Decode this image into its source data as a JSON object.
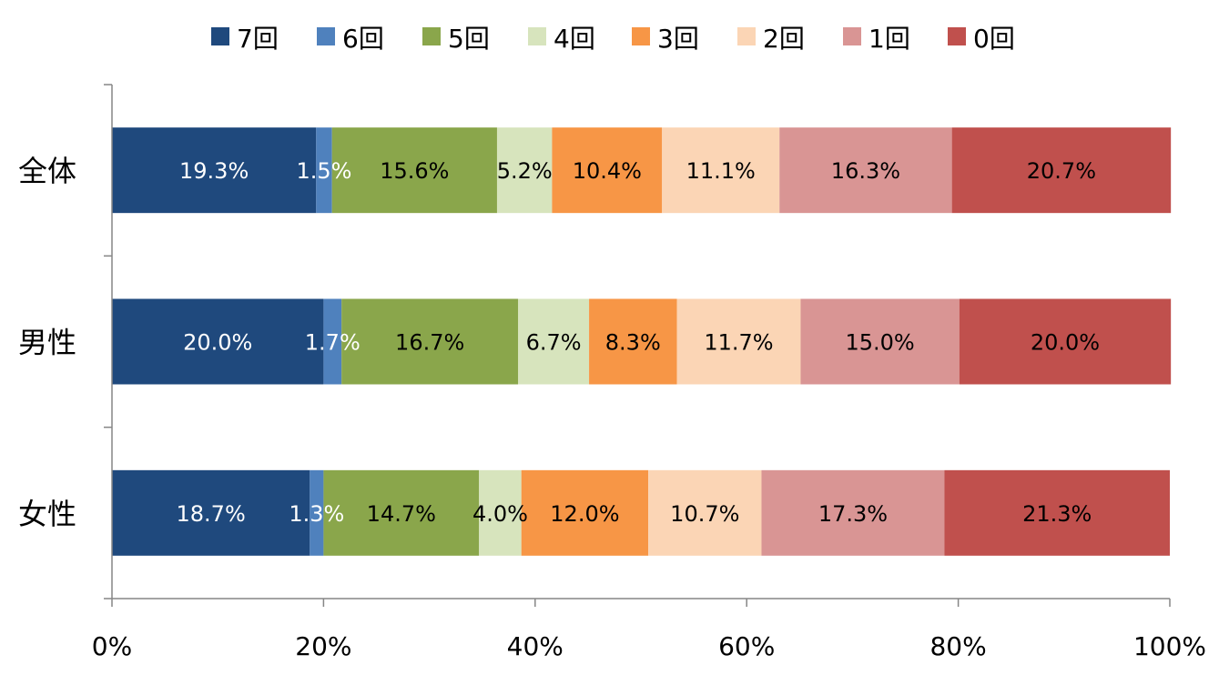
{
  "chart_data": {
    "type": "bar",
    "orientation": "horizontal",
    "stacked": "percent",
    "categories": [
      "全体",
      "男性",
      "女性"
    ],
    "series": [
      {
        "name": "7回",
        "color": "#1F497D",
        "label_color": "#FFFFFF",
        "values": [
          19.3,
          20.0,
          18.7
        ],
        "labels": [
          "19.3%",
          "20.0%",
          "18.7%"
        ]
      },
      {
        "name": "6回",
        "color": "#4F81BD",
        "label_color": "#FFFFFF",
        "values": [
          1.5,
          1.7,
          1.3
        ],
        "labels": [
          "1.5%",
          "1.7%",
          "1.3%"
        ]
      },
      {
        "name": "5回",
        "color": "#8AA64B",
        "label_color": "#000000",
        "values": [
          15.6,
          16.7,
          14.7
        ],
        "labels": [
          "15.6%",
          "16.7%",
          "14.7%"
        ]
      },
      {
        "name": "4回",
        "color": "#D7E4BD",
        "label_color": "#000000",
        "values": [
          5.2,
          6.7,
          4.0
        ],
        "labels": [
          "5.2%",
          "6.7%",
          "4.0%"
        ]
      },
      {
        "name": "3回",
        "color": "#F79646",
        "label_color": "#000000",
        "values": [
          10.4,
          8.3,
          12.0
        ],
        "labels": [
          "10.4%",
          "8.3%",
          "12.0%"
        ]
      },
      {
        "name": "2回",
        "color": "#FBD5B5",
        "label_color": "#000000",
        "values": [
          11.1,
          11.7,
          10.7
        ],
        "labels": [
          "11.1%",
          "11.7%",
          "10.7%"
        ]
      },
      {
        "name": "1回",
        "color": "#D99594",
        "label_color": "#000000",
        "values": [
          16.3,
          15.0,
          17.3
        ],
        "labels": [
          "16.3%",
          "15.0%",
          "17.3%"
        ]
      },
      {
        "name": "0回",
        "color": "#C0504D",
        "label_color": "#000000",
        "values": [
          20.7,
          20.0,
          21.3
        ],
        "labels": [
          "20.7%",
          "20.0%",
          "21.3%"
        ]
      }
    ],
    "x_ticks": [
      "0%",
      "20%",
      "40%",
      "60%",
      "80%",
      "100%"
    ],
    "xlim": [
      0,
      100
    ],
    "legend": "top",
    "grid": false,
    "title": "",
    "xlabel": "",
    "ylabel": ""
  }
}
